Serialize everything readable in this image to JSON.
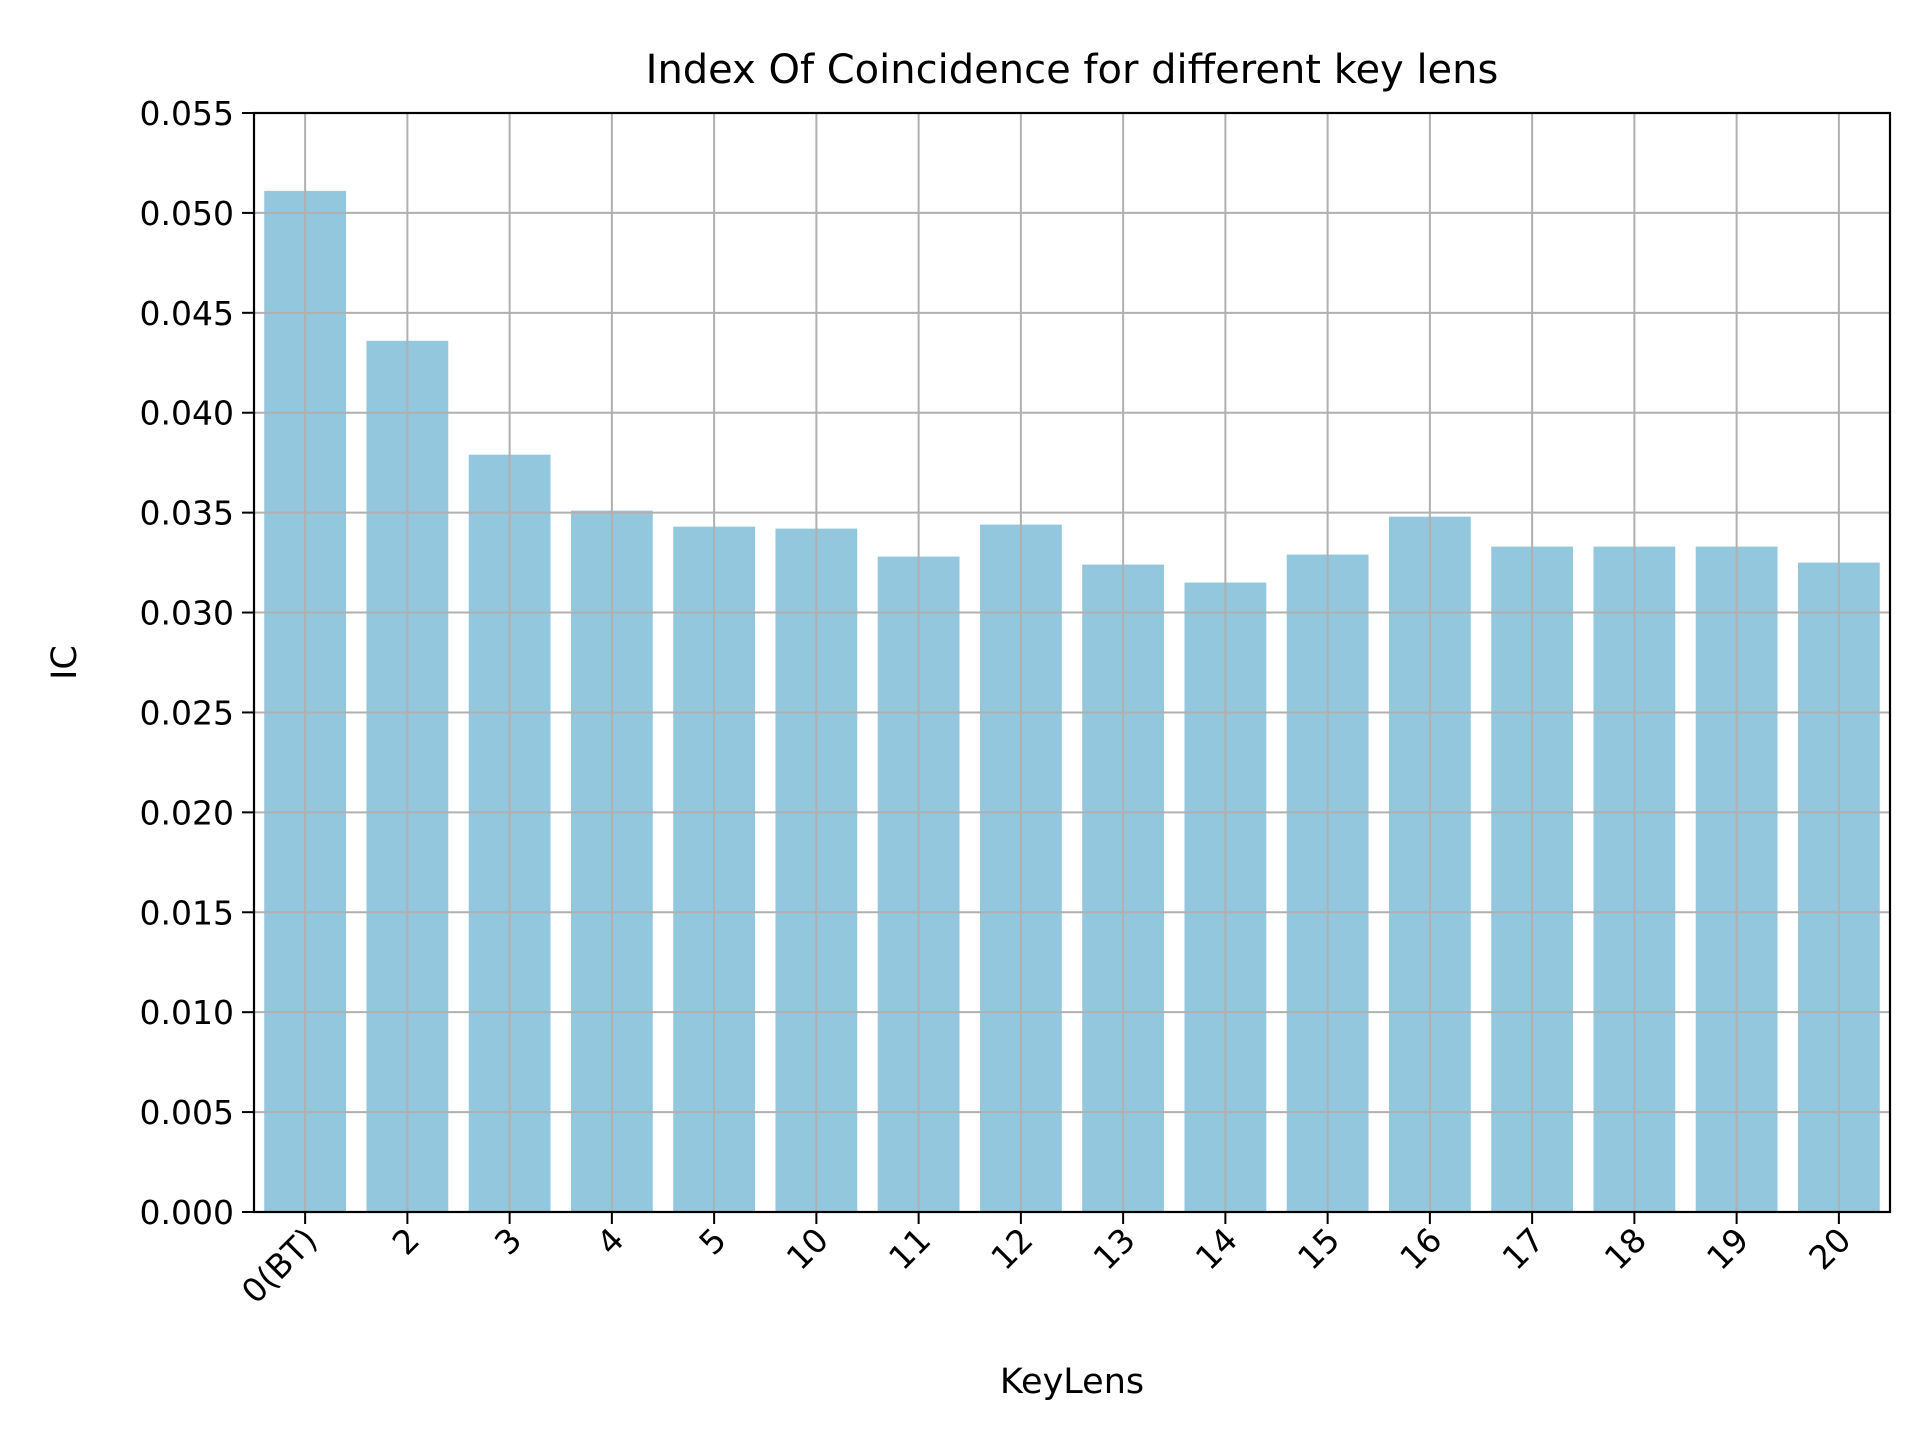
{
  "chart_data": {
    "type": "bar",
    "title": "Index Of Coincidence for different key lens",
    "xlabel": "KeyLens",
    "ylabel": "IC",
    "categories": [
      "0(BT)",
      "2",
      "3",
      "4",
      "5",
      "10",
      "11",
      "12",
      "13",
      "14",
      "15",
      "16",
      "17",
      "18",
      "19",
      "20"
    ],
    "values": [
      0.0511,
      0.0436,
      0.0379,
      0.0351,
      0.0343,
      0.0342,
      0.0328,
      0.0344,
      0.0324,
      0.0315,
      0.0329,
      0.0348,
      0.0333,
      0.0333,
      0.0333,
      0.0325
    ],
    "ylim": [
      0,
      0.055
    ],
    "yticks": [
      "0.000",
      "0.005",
      "0.010",
      "0.015",
      "0.020",
      "0.025",
      "0.030",
      "0.035",
      "0.040",
      "0.045",
      "0.050",
      "0.055"
    ],
    "grid": true,
    "bar_color": "#93c7de",
    "grid_color": "#b0b0b0"
  }
}
